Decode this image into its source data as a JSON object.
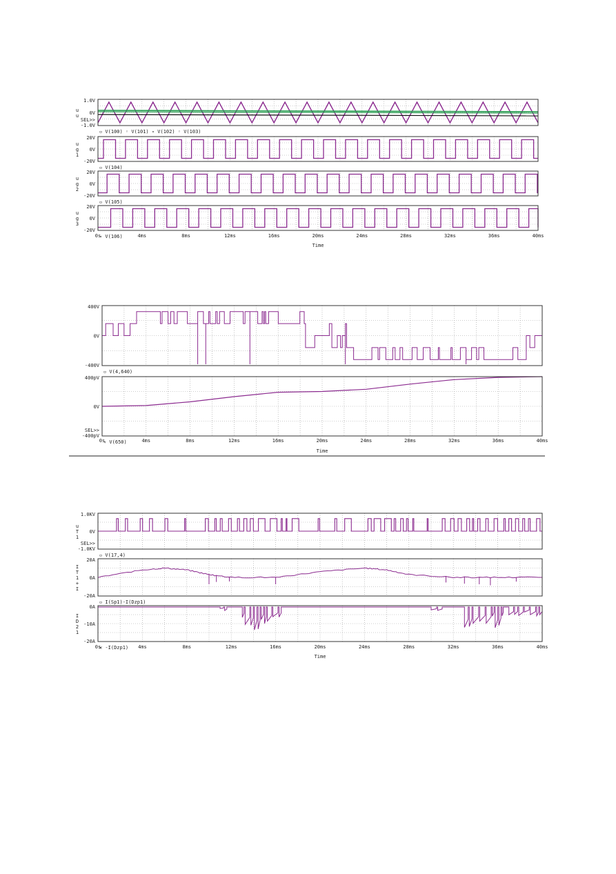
{
  "colors": {
    "trace": "#8b2a8f",
    "green": "#1f9a4a",
    "black": "#111111",
    "frame": "#333333",
    "grid": "#9a9a9a"
  },
  "figures": [
    {
      "xlabel": "Time",
      "xticks": [
        "0s",
        "4ms",
        "8ms",
        "12ms",
        "16ms",
        "20ms",
        "24ms",
        "28ms",
        "32ms",
        "36ms",
        "40ms"
      ],
      "panels": [
        {
          "ylabel": "u\nu",
          "yticks": [
            "1.0V",
            "0V",
            "SEL>>\n-1.0V"
          ],
          "legend": "▫ V(100)  ◦ V(101)  ▿ V(102)  ◦ V(103)",
          "kind": "triangle"
        },
        {
          "ylabel": "u\ng\n1",
          "yticks": [
            "20V",
            "0V",
            "-20V"
          ],
          "legend": "▫ V(104)",
          "kind": "square",
          "phase": 0.0
        },
        {
          "ylabel": "u\ng\n2",
          "yticks": [
            "20V",
            "0V",
            "-20V"
          ],
          "legend": "▫ V(105)",
          "kind": "square",
          "phase": 0.33
        },
        {
          "ylabel": "u\ng\n3",
          "yticks": [
            "20V",
            "0V",
            "-20V"
          ],
          "legend": "▿ V(106)",
          "kind": "square",
          "phase": 0.66
        }
      ]
    },
    {
      "xlabel": "Time",
      "xticks": [
        "0s",
        "4ms",
        "8ms",
        "12ms",
        "16ms",
        "20ms",
        "24ms",
        "28ms",
        "32ms",
        "36ms",
        "40ms"
      ],
      "panels": [
        {
          "ylabel": "",
          "yticks": [
            "400V",
            "0V",
            "-400V"
          ],
          "legend": "▫ V(4,640)",
          "kind": "pwm"
        },
        {
          "ylabel": "",
          "yticks": [
            "400pV",
            "0V",
            "SEL>>\n-400pV"
          ],
          "legend": "▿ V(650)",
          "kind": "ramp"
        }
      ]
    },
    {
      "xlabel": "Time",
      "xticks": [
        "0s",
        "4ms",
        "8ms",
        "12ms",
        "16ms",
        "20ms",
        "24ms",
        "28ms",
        "32ms",
        "36ms",
        "40ms"
      ],
      "panels": [
        {
          "ylabel": "u\nT\n1",
          "yticks": [
            "1.0KV",
            "0V",
            "SEL>>\n-1.0KV"
          ],
          "legend": "▫ V(17,4)",
          "kind": "pulses"
        },
        {
          "ylabel": "I\nT\n1\n+\nI",
          "yticks": [
            "20A",
            "0A",
            "-20A"
          ],
          "legend": "▫ I(Sp1)-I(Dzp1)",
          "kind": "current"
        },
        {
          "ylabel": "I\nD\n2\n1",
          "yticks": [
            "0A",
            "-10A",
            "-20A"
          ],
          "legend": "✕ -I(Dzp1)",
          "kind": "diode"
        }
      ]
    }
  ],
  "chart_data": [
    {
      "type": "line",
      "x": [
        0,
        4,
        8,
        12,
        16,
        20,
        24,
        28,
        32,
        36,
        40
      ],
      "x_unit": "ms",
      "xlim": [
        0,
        40
      ],
      "xlabel": "Time",
      "series": [
        {
          "name": "V(100)",
          "shape": "triangle",
          "amplitude": 1.0,
          "period_ms": 2.0,
          "ylim": [
            -1.0,
            1.0
          ]
        },
        {
          "name": "V(101)",
          "value": 0.05,
          "ylim": [
            -1.0,
            1.0
          ]
        },
        {
          "name": "V(102)",
          "value": 0.03,
          "ylim": [
            -1.0,
            1.0
          ]
        },
        {
          "name": "V(103)",
          "value": -0.05,
          "ylim": [
            -1.0,
            1.0
          ]
        },
        {
          "name": "V(104)",
          "shape": "square",
          "high": 15,
          "low": -15,
          "period_ms": 2.0,
          "ylim": [
            -20,
            20
          ]
        },
        {
          "name": "V(105)",
          "shape": "square",
          "high": 15,
          "low": -15,
          "period_ms": 2.0,
          "ylim": [
            -20,
            20
          ]
        },
        {
          "name": "V(106)",
          "shape": "square",
          "high": 15,
          "low": -15,
          "period_ms": 2.0,
          "ylim": [
            -20,
            20
          ]
        }
      ]
    },
    {
      "type": "line",
      "x_unit": "ms",
      "xlim": [
        0,
        40
      ],
      "xlabel": "Time",
      "series": [
        {
          "name": "V(4,640)",
          "levels": [
            -400,
            -200,
            0,
            200,
            400
          ],
          "ylim": [
            -400,
            400
          ]
        },
        {
          "name": "V(650)",
          "x": [
            0,
            4,
            8,
            12,
            16,
            20,
            24,
            28,
            32,
            36,
            40
          ],
          "y": [
            0,
            10,
            60,
            130,
            190,
            200,
            230,
            300,
            360,
            390,
            400
          ],
          "ylim": [
            -400,
            400
          ]
        }
      ]
    },
    {
      "type": "line",
      "x_unit": "ms",
      "xlim": [
        0,
        40
      ],
      "xlabel": "Time",
      "series": [
        {
          "name": "V(17,4)",
          "levels": [
            0,
            700
          ],
          "ylim": [
            -1000,
            1000
          ]
        },
        {
          "name": "I(Sp1)-I(Dzp1)",
          "x": [
            0,
            4,
            6,
            8,
            10,
            12,
            16,
            20,
            24,
            26,
            28,
            32,
            36,
            40
          ],
          "y": [
            0,
            8,
            10,
            8,
            3,
            0,
            0,
            6,
            10,
            8,
            3,
            0,
            0,
            0
          ],
          "ylim": [
            -20,
            20
          ]
        },
        {
          "name": "-I(Dzp1)",
          "x": [
            0,
            11,
            13,
            15,
            16,
            30,
            33,
            36,
            38,
            40
          ],
          "y": [
            0,
            0,
            -10,
            -13,
            -5,
            0,
            -12,
            -11,
            -4,
            0
          ],
          "ylim": [
            -20,
            0
          ]
        }
      ]
    }
  ]
}
